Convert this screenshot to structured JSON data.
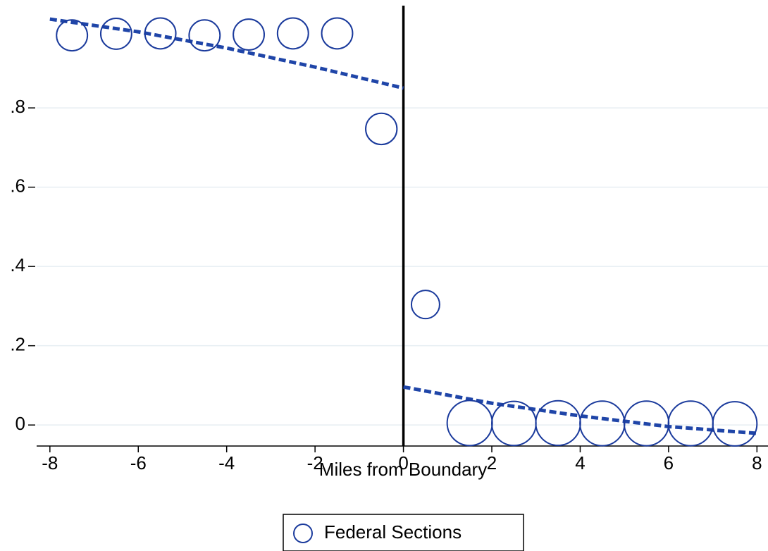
{
  "chart_data": {
    "type": "scatter",
    "xlabel": "Miles from Boundary",
    "x": [
      -7.5,
      -6.5,
      -5.5,
      -4.5,
      -3.5,
      -2.5,
      -1.5,
      -0.5,
      0.5,
      1.5,
      2.5,
      3.5,
      4.5,
      5.5,
      6.5,
      7.5
    ],
    "series": [
      {
        "name": "Federal Sections",
        "color": "#1a3a9c",
        "values": [
          0.983,
          0.987,
          0.988,
          0.983,
          0.985,
          0.988,
          0.988,
          0.747,
          0.304,
          0.005,
          0.004,
          0.005,
          0.004,
          0.004,
          0.004,
          0.003
        ],
        "sizes": [
          47,
          47,
          47,
          47,
          47,
          47,
          47,
          48,
          39,
          100,
          96,
          98,
          98,
          98,
          98,
          96
        ]
      }
    ],
    "fit_lines": [
      {
        "color": "#1f45a8",
        "x": [
          -8,
          -6,
          -4,
          -2,
          0
        ],
        "values": [
          1.024,
          0.992,
          0.951,
          0.903,
          0.85
        ]
      },
      {
        "color": "#1f45a8",
        "x": [
          0,
          2,
          4,
          6,
          8
        ],
        "values": [
          0.096,
          0.055,
          0.023,
          -0.004,
          -0.021
        ]
      }
    ],
    "vline": 0,
    "xlim": [
      -8.3,
      8.25
    ],
    "ylim": [
      -0.053,
      1.058
    ],
    "xticks": [
      -8,
      -6,
      -4,
      -2,
      0,
      2,
      4,
      6,
      8
    ],
    "yticks": [
      0,
      {
        "value": 0.2,
        "label": ".2"
      },
      {
        "value": 0.4,
        "label": ".4"
      },
      {
        "value": 0.6,
        "label": ".6"
      },
      {
        "value": 0.8,
        "label": ".8"
      }
    ],
    "grid": true,
    "legend": "bottom"
  }
}
